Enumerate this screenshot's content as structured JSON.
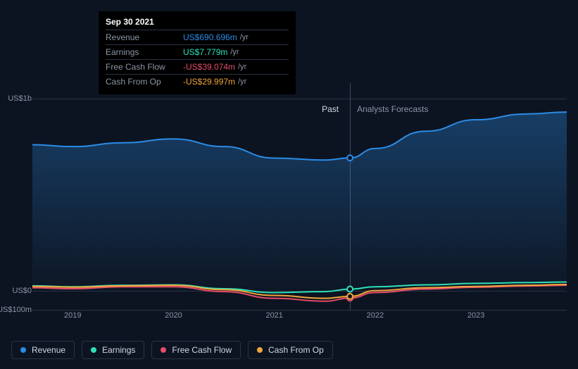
{
  "tooltip": {
    "date": "Sep 30 2021",
    "unit": "/yr",
    "rows": [
      {
        "label": "Revenue",
        "value": "US$690.696m",
        "color": "#2b8ce6"
      },
      {
        "label": "Earnings",
        "value": "US$7.779m",
        "color": "#2de0b8"
      },
      {
        "label": "Free Cash Flow",
        "value": "-US$39.074m",
        "color": "#e64c6a"
      },
      {
        "label": "Cash From Op",
        "value": "-US$29.997m",
        "color": "#f0a63c"
      }
    ]
  },
  "chart": {
    "type": "area-line",
    "background_color": "#0d1421",
    "grid_color": "#2a3342",
    "text_color": "#8b96a5",
    "time_range": [
      2018.6,
      2023.9
    ],
    "cursor_x": 2021.75,
    "sections": {
      "past_label": "Past",
      "forecast_label": "Analysts Forecasts",
      "split_x": 2021.75
    },
    "y_labels": [
      {
        "text": "US$1b",
        "value": 1000
      },
      {
        "text": "US$0",
        "value": 0
      },
      {
        "text": "-US$100m",
        "value": -100
      }
    ],
    "ylim": [
      -100,
      1000
    ],
    "x_years": [
      2019,
      2020,
      2021,
      2022,
      2023
    ],
    "series": [
      {
        "name": "Revenue",
        "color": "#2b8ce6",
        "fill": true,
        "fill_opacity": 0.25,
        "points": [
          [
            2018.6,
            760
          ],
          [
            2019,
            750
          ],
          [
            2019.5,
            770
          ],
          [
            2020,
            790
          ],
          [
            2020.5,
            750
          ],
          [
            2021,
            690
          ],
          [
            2021.5,
            680
          ],
          [
            2021.75,
            691
          ],
          [
            2022,
            740
          ],
          [
            2022.5,
            830
          ],
          [
            2023,
            890
          ],
          [
            2023.5,
            920
          ],
          [
            2023.9,
            930
          ]
        ]
      },
      {
        "name": "Earnings",
        "color": "#2de0b8",
        "fill": false,
        "points": [
          [
            2018.6,
            25
          ],
          [
            2019,
            20
          ],
          [
            2019.5,
            28
          ],
          [
            2020,
            30
          ],
          [
            2020.5,
            10
          ],
          [
            2021,
            -10
          ],
          [
            2021.5,
            -5
          ],
          [
            2021.75,
            8
          ],
          [
            2022,
            20
          ],
          [
            2022.5,
            30
          ],
          [
            2023,
            38
          ],
          [
            2023.5,
            42
          ],
          [
            2023.9,
            45
          ]
        ]
      },
      {
        "name": "Free Cash Flow",
        "color": "#e64c6a",
        "fill": false,
        "points": [
          [
            2018.6,
            15
          ],
          [
            2019,
            10
          ],
          [
            2019.5,
            20
          ],
          [
            2020,
            20
          ],
          [
            2020.5,
            -5
          ],
          [
            2021,
            -40
          ],
          [
            2021.5,
            -55
          ],
          [
            2021.75,
            -39
          ],
          [
            2022,
            -10
          ],
          [
            2022.5,
            8
          ],
          [
            2023,
            18
          ],
          [
            2023.5,
            24
          ],
          [
            2023.9,
            28
          ]
        ]
      },
      {
        "name": "Cash From Op",
        "color": "#f0a63c",
        "fill": false,
        "points": [
          [
            2018.6,
            22
          ],
          [
            2019,
            18
          ],
          [
            2019.5,
            25
          ],
          [
            2020,
            28
          ],
          [
            2020.5,
            5
          ],
          [
            2021,
            -25
          ],
          [
            2021.5,
            -40
          ],
          [
            2021.75,
            -30
          ],
          [
            2022,
            0
          ],
          [
            2022.5,
            15
          ],
          [
            2023,
            22
          ],
          [
            2023.5,
            28
          ],
          [
            2023.9,
            32
          ]
        ]
      }
    ],
    "legend": [
      {
        "label": "Revenue",
        "color": "#2b8ce6"
      },
      {
        "label": "Earnings",
        "color": "#2de0b8"
      },
      {
        "label": "Free Cash Flow",
        "color": "#e64c6a"
      },
      {
        "label": "Cash From Op",
        "color": "#f0a63c"
      }
    ]
  }
}
